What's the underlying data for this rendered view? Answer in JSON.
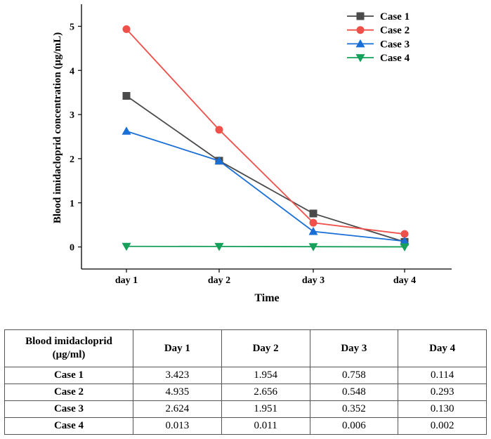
{
  "chart_data": {
    "type": "line",
    "ylabel": "Blood imidacloprid concentration (μg/mL)",
    "xlabel": "Time",
    "categories": [
      "day 1",
      "day 2",
      "day 3",
      "day 4"
    ],
    "ylim": [
      -0.5,
      5.5
    ],
    "yticks": [
      0,
      1,
      2,
      3,
      4,
      5
    ],
    "legend_position": "top-right",
    "series": [
      {
        "name": "Case 1",
        "color": "#4a4a4a",
        "marker": "square",
        "values": [
          3.423,
          1.954,
          0.758,
          0.114
        ]
      },
      {
        "name": "Case 2",
        "color": "#f0504a",
        "marker": "circle",
        "values": [
          4.935,
          2.656,
          0.548,
          0.293
        ]
      },
      {
        "name": "Case 3",
        "color": "#1a6fd6",
        "marker": "triangle-up",
        "values": [
          2.624,
          1.951,
          0.352,
          0.13
        ]
      },
      {
        "name": "Case 4",
        "color": "#17a05a",
        "marker": "triangle-down",
        "values": [
          0.013,
          0.011,
          0.006,
          0.002
        ]
      }
    ]
  },
  "table": {
    "header_line1": "Blood imidacloprid",
    "header_line2": "(μg/ml)",
    "columns": [
      "Day 1",
      "Day 2",
      "Day 3",
      "Day 4"
    ],
    "rows": [
      {
        "label": "Case 1",
        "cells": [
          "3.423",
          "1.954",
          "0.758",
          "0.114"
        ]
      },
      {
        "label": "Case 2",
        "cells": [
          "4.935",
          "2.656",
          "0.548",
          "0.293"
        ]
      },
      {
        "label": "Case 3",
        "cells": [
          "2.624",
          "1.951",
          "0.352",
          "0.130"
        ]
      },
      {
        "label": "Case 4",
        "cells": [
          "0.013",
          "0.011",
          "0.006",
          "0.002"
        ]
      }
    ]
  }
}
